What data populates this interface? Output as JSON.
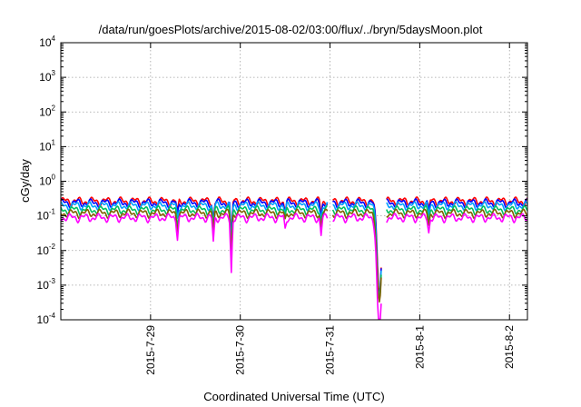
{
  "chart_data": {
    "type": "line",
    "title": "/data/run/goesPlots/archive/2015-08-02/03:00/flux/../bryn/5daysMoon.plot",
    "xlabel": "Coordinated Universal Time (UTC)",
    "ylabel": "cGy/day",
    "yscale": "log",
    "ylim": [
      0.0001,
      10000
    ],
    "xlim_days": [
      0,
      5.2
    ],
    "yticks": [
      {
        "base": "10",
        "exp": "-4",
        "value": 0.0001
      },
      {
        "base": "10",
        "exp": "-3",
        "value": 0.001
      },
      {
        "base": "10",
        "exp": "-2",
        "value": 0.01
      },
      {
        "base": "10",
        "exp": "-1",
        "value": 0.1
      },
      {
        "base": "10",
        "exp": "0",
        "value": 1
      },
      {
        "base": "10",
        "exp": "1",
        "value": 10
      },
      {
        "base": "10",
        "exp": "2",
        "value": 100
      },
      {
        "base": "10",
        "exp": "3",
        "value": 1000
      },
      {
        "base": "10",
        "exp": "4",
        "value": 10000
      }
    ],
    "xticks": [
      {
        "label": "2015-7-29",
        "day": 1
      },
      {
        "label": "2015-7-30",
        "day": 2
      },
      {
        "label": "2015-7-31",
        "day": 3
      },
      {
        "label": "2015-8-1",
        "day": 4
      },
      {
        "label": "2015-8-2",
        "day": 5
      }
    ],
    "grid": true,
    "legend": "none",
    "series": [
      {
        "color": "#ff0000",
        "base": 0.27
      },
      {
        "color": "#0000ff",
        "base": 0.24
      },
      {
        "color": "#00a0ff",
        "base": 0.2
      },
      {
        "color": "#00c060",
        "base": 0.15
      },
      {
        "color": "#806000",
        "base": 0.12
      },
      {
        "color": "#ff00ff",
        "base": 0.09
      }
    ],
    "dips": [
      {
        "day": 1.3,
        "depth": 0.4
      },
      {
        "day": 1.7,
        "depth": 0.28
      },
      {
        "day": 1.9,
        "depth": 0.07
      },
      {
        "day": 2.5,
        "depth": 0.55
      },
      {
        "day": 2.9,
        "depth": 0.42
      },
      {
        "day": 3.55,
        "depth": 0.0025
      },
      {
        "day": 4.1,
        "depth": 0.5
      }
    ],
    "gaps": [
      {
        "from": 2.98,
        "to": 3.02
      },
      {
        "from": 3.58,
        "to": 3.62
      }
    ]
  }
}
